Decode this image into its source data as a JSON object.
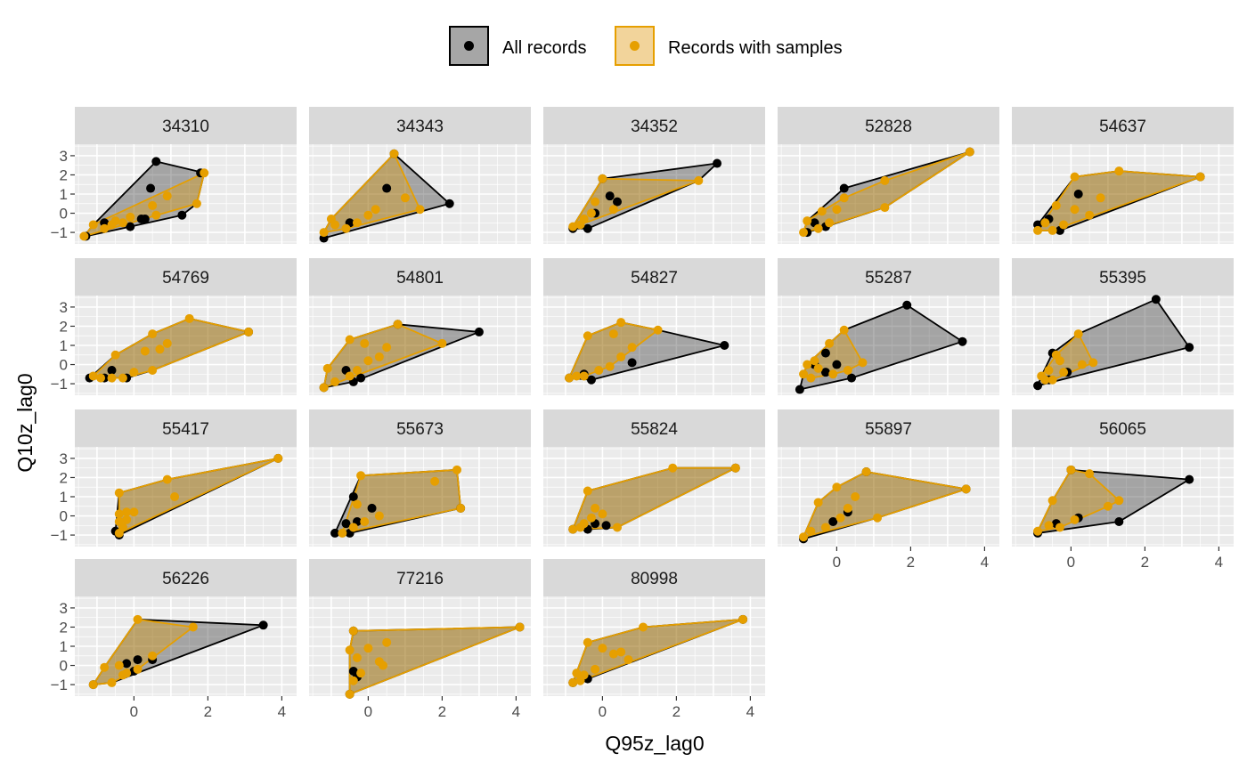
{
  "chart_data": {
    "type": "scatter",
    "xlabel": "Q95z_lag0",
    "ylabel": "Q10z_lag0",
    "xlim": [
      -1.6,
      4.4
    ],
    "ylim": [
      -1.6,
      3.6
    ],
    "x_ticks": [
      0,
      2,
      4
    ],
    "y_ticks": [
      3,
      2,
      1,
      0,
      -1
    ],
    "grid": true,
    "hull_fill": true,
    "legend_position": "top",
    "series": [
      {
        "name": "All records",
        "color": "#000000",
        "fill": "#a6a6a6",
        "legend_key": "all_records"
      },
      {
        "name": "Records with samples",
        "color": "#E69F00",
        "fill": "#f2d49b",
        "legend_key": "with_samples"
      }
    ],
    "panels": [
      {
        "label": "34310",
        "all": [
          [
            -1.3,
            -1.2
          ],
          [
            0.6,
            2.7
          ],
          [
            1.8,
            2.1
          ],
          [
            1.3,
            -0.1
          ],
          [
            -0.1,
            -0.7
          ],
          [
            0.45,
            1.3
          ],
          [
            0.2,
            -0.3
          ],
          [
            0.3,
            -0.3
          ],
          [
            -0.8,
            -0.5
          ]
        ],
        "samples": [
          [
            -1.35,
            -1.2
          ],
          [
            -1.1,
            -0.6
          ],
          [
            -0.8,
            -0.8
          ],
          [
            -0.5,
            -0.4
          ],
          [
            -0.3,
            -0.5
          ],
          [
            -0.1,
            -0.2
          ],
          [
            0.5,
            0.4
          ],
          [
            0.6,
            -0.1
          ],
          [
            0.9,
            0.9
          ],
          [
            1.7,
            0.5
          ],
          [
            1.9,
            2.1
          ],
          [
            -0.6,
            -0.6
          ]
        ]
      },
      {
        "label": "34343",
        "all": [
          [
            -1.2,
            -1.3
          ],
          [
            0.7,
            3.1
          ],
          [
            2.2,
            0.5
          ],
          [
            0.5,
            1.3
          ],
          [
            -0.5,
            -0.5
          ]
        ],
        "samples": [
          [
            -1.2,
            -1.0
          ],
          [
            -1.0,
            -0.3
          ],
          [
            0.7,
            3.1
          ],
          [
            1.4,
            0.2
          ],
          [
            1.0,
            0.8
          ],
          [
            0.2,
            0.2
          ],
          [
            -0.3,
            -0.5
          ],
          [
            0.0,
            -0.1
          ],
          [
            -0.6,
            -0.8
          ],
          [
            -0.9,
            -0.6
          ]
        ]
      },
      {
        "label": "34352",
        "all": [
          [
            -0.8,
            -0.8
          ],
          [
            -0.4,
            -0.8
          ],
          [
            3.1,
            2.6
          ],
          [
            0.0,
            1.8
          ],
          [
            0.2,
            0.9
          ],
          [
            0.4,
            0.6
          ],
          [
            -0.2,
            0.0
          ]
        ],
        "samples": [
          [
            -0.8,
            -0.7
          ],
          [
            -0.6,
            -0.6
          ],
          [
            0.0,
            1.8
          ],
          [
            2.6,
            1.7
          ],
          [
            0.3,
            0.2
          ],
          [
            -0.3,
            0.0
          ],
          [
            -0.2,
            0.6
          ],
          [
            -0.5,
            -0.3
          ]
        ]
      },
      {
        "label": "52828",
        "all": [
          [
            -0.8,
            -1.0
          ],
          [
            0.2,
            1.3
          ],
          [
            3.6,
            3.2
          ],
          [
            -0.6,
            -0.5
          ],
          [
            -0.3,
            -0.7
          ]
        ],
        "samples": [
          [
            -0.9,
            -1.0
          ],
          [
            -0.8,
            -0.4
          ],
          [
            -0.5,
            -0.8
          ],
          [
            -0.2,
            -0.5
          ],
          [
            0.0,
            0.2
          ],
          [
            0.2,
            0.8
          ],
          [
            1.3,
            1.7
          ],
          [
            1.3,
            0.3
          ],
          [
            3.6,
            3.2
          ],
          [
            -0.4,
            0.1
          ]
        ]
      },
      {
        "label": "54637",
        "all": [
          [
            -0.9,
            -0.6
          ],
          [
            -0.3,
            -0.9
          ],
          [
            0.2,
            1.0
          ],
          [
            3.5,
            1.9
          ],
          [
            -0.6,
            -0.3
          ]
        ],
        "samples": [
          [
            -0.9,
            -0.9
          ],
          [
            -0.7,
            -0.5
          ],
          [
            -0.4,
            0.4
          ],
          [
            0.1,
            1.9
          ],
          [
            1.3,
            2.2
          ],
          [
            3.5,
            1.9
          ],
          [
            0.8,
            0.8
          ],
          [
            0.5,
            -0.1
          ],
          [
            0.1,
            0.2
          ],
          [
            -0.2,
            -0.6
          ],
          [
            -0.5,
            -0.9
          ]
        ]
      },
      {
        "label": "54769",
        "all": [
          [
            -1.2,
            -0.7
          ],
          [
            -0.6,
            -0.3
          ],
          [
            -0.2,
            -0.7
          ],
          [
            3.1,
            1.7
          ],
          [
            -0.8,
            -0.7
          ]
        ],
        "samples": [
          [
            -1.1,
            -0.6
          ],
          [
            -0.9,
            -0.7
          ],
          [
            -0.5,
            0.5
          ],
          [
            0.5,
            1.6
          ],
          [
            1.5,
            2.4
          ],
          [
            3.1,
            1.7
          ],
          [
            0.9,
            1.1
          ],
          [
            0.7,
            0.8
          ],
          [
            0.3,
            0.7
          ],
          [
            0.5,
            -0.3
          ],
          [
            0.0,
            -0.4
          ],
          [
            -0.3,
            -0.7
          ],
          [
            -0.6,
            -0.7
          ]
        ]
      },
      {
        "label": "54801",
        "all": [
          [
            -1.2,
            -1.2
          ],
          [
            3.0,
            1.7
          ],
          [
            0.8,
            2.1
          ],
          [
            -0.6,
            -0.3
          ],
          [
            -0.4,
            -0.9
          ],
          [
            -0.2,
            -0.7
          ]
        ],
        "samples": [
          [
            -1.2,
            -1.2
          ],
          [
            -1.1,
            -0.2
          ],
          [
            -0.5,
            1.3
          ],
          [
            0.8,
            2.1
          ],
          [
            2.0,
            1.1
          ],
          [
            0.3,
            0.4
          ],
          [
            0.0,
            0.2
          ],
          [
            -0.3,
            -0.3
          ],
          [
            -0.5,
            -0.6
          ],
          [
            -0.9,
            -0.9
          ],
          [
            -0.1,
            1.1
          ],
          [
            0.5,
            0.9
          ]
        ]
      },
      {
        "label": "54827",
        "all": [
          [
            -0.9,
            -0.7
          ],
          [
            -0.3,
            -0.8
          ],
          [
            3.3,
            1.0
          ],
          [
            0.8,
            0.1
          ],
          [
            -0.5,
            -0.5
          ]
        ],
        "samples": [
          [
            -0.9,
            -0.7
          ],
          [
            -0.7,
            -0.6
          ],
          [
            -0.4,
            1.5
          ],
          [
            0.5,
            2.2
          ],
          [
            1.5,
            1.8
          ],
          [
            0.3,
            1.6
          ],
          [
            0.8,
            0.9
          ],
          [
            0.5,
            0.4
          ],
          [
            0.2,
            -0.1
          ],
          [
            -0.1,
            -0.3
          ],
          [
            -0.5,
            -0.6
          ]
        ]
      },
      {
        "label": "55287",
        "all": [
          [
            -1.0,
            -1.3
          ],
          [
            1.9,
            3.1
          ],
          [
            3.4,
            1.2
          ],
          [
            0.4,
            -0.7
          ],
          [
            -0.3,
            0.6
          ],
          [
            0.0,
            0.0
          ],
          [
            -0.6,
            0.0
          ],
          [
            -0.3,
            -0.4
          ]
        ],
        "samples": [
          [
            -0.9,
            -0.5
          ],
          [
            -0.8,
            0.0
          ],
          [
            -0.2,
            1.1
          ],
          [
            0.2,
            1.8
          ],
          [
            0.7,
            0.1
          ],
          [
            0.3,
            -0.3
          ],
          [
            -0.1,
            -0.5
          ],
          [
            -0.5,
            -0.2
          ],
          [
            -0.7,
            -0.7
          ],
          [
            -0.6,
            0.2
          ]
        ]
      },
      {
        "label": "55395",
        "all": [
          [
            -0.9,
            -1.1
          ],
          [
            -0.5,
            0.6
          ],
          [
            2.3,
            3.4
          ],
          [
            3.2,
            0.9
          ],
          [
            -0.1,
            -0.4
          ],
          [
            -0.6,
            -0.8
          ]
        ],
        "samples": [
          [
            -0.8,
            -0.6
          ],
          [
            -0.6,
            -0.3
          ],
          [
            -0.3,
            0.2
          ],
          [
            0.2,
            1.6
          ],
          [
            0.6,
            0.1
          ],
          [
            0.3,
            0.0
          ],
          [
            -0.2,
            -0.4
          ],
          [
            -0.5,
            -0.8
          ],
          [
            -0.7,
            -0.8
          ],
          [
            -0.4,
            0.5
          ]
        ]
      },
      {
        "label": "55417",
        "all": [
          [
            -0.4,
            -1.0
          ],
          [
            3.9,
            3.0
          ],
          [
            -0.5,
            -0.8
          ]
        ],
        "samples": [
          [
            -0.4,
            -0.9
          ],
          [
            -0.4,
            1.2
          ],
          [
            0.9,
            1.9
          ],
          [
            3.9,
            3.0
          ],
          [
            1.1,
            1.0
          ],
          [
            0.0,
            0.2
          ],
          [
            -0.2,
            -0.2
          ],
          [
            -0.4,
            0.1
          ],
          [
            -0.3,
            -0.6
          ],
          [
            -0.4,
            -0.3
          ],
          [
            -0.2,
            0.2
          ]
        ]
      },
      {
        "label": "55673",
        "all": [
          [
            -0.9,
            -0.9
          ],
          [
            -0.4,
            1.0
          ],
          [
            2.5,
            0.4
          ],
          [
            0.1,
            0.4
          ],
          [
            -0.3,
            -0.3
          ],
          [
            -0.5,
            -0.9
          ],
          [
            -0.6,
            -0.4
          ]
        ],
        "samples": [
          [
            -0.7,
            -0.9
          ],
          [
            -0.2,
            2.1
          ],
          [
            2.4,
            2.4
          ],
          [
            2.5,
            0.4
          ],
          [
            1.8,
            1.8
          ],
          [
            0.3,
            0.0
          ],
          [
            -0.1,
            -0.3
          ],
          [
            -0.4,
            -0.6
          ],
          [
            -0.3,
            0.6
          ]
        ]
      },
      {
        "label": "55824",
        "all": [
          [
            -0.8,
            -0.7
          ],
          [
            3.6,
            2.5
          ],
          [
            0.1,
            -0.5
          ],
          [
            -0.4,
            -0.7
          ],
          [
            -0.2,
            -0.4
          ]
        ],
        "samples": [
          [
            -0.8,
            -0.7
          ],
          [
            -0.4,
            1.3
          ],
          [
            1.9,
            2.5
          ],
          [
            3.6,
            2.5
          ],
          [
            0.4,
            -0.6
          ],
          [
            0.0,
            0.1
          ],
          [
            -0.2,
            0.4
          ],
          [
            -0.5,
            -0.4
          ],
          [
            -0.3,
            -0.1
          ],
          [
            -0.6,
            -0.6
          ]
        ]
      },
      {
        "label": "55897",
        "all": [
          [
            -0.9,
            -1.2
          ],
          [
            -0.1,
            -0.3
          ],
          [
            3.5,
            1.4
          ],
          [
            0.8,
            2.3
          ],
          [
            0.3,
            0.2
          ]
        ],
        "samples": [
          [
            -0.9,
            -1.1
          ],
          [
            -0.5,
            0.7
          ],
          [
            0.0,
            1.5
          ],
          [
            0.8,
            2.3
          ],
          [
            3.5,
            1.4
          ],
          [
            1.1,
            -0.1
          ],
          [
            0.3,
            0.4
          ],
          [
            0.1,
            -0.1
          ],
          [
            -0.3,
            -0.6
          ],
          [
            -0.7,
            -0.8
          ],
          [
            0.5,
            1.0
          ]
        ]
      },
      {
        "label": "56065",
        "all": [
          [
            -0.9,
            -0.9
          ],
          [
            0.0,
            2.4
          ],
          [
            3.2,
            1.9
          ],
          [
            1.3,
            -0.3
          ],
          [
            0.2,
            -0.1
          ],
          [
            -0.4,
            -0.4
          ]
        ],
        "samples": [
          [
            -0.9,
            -0.8
          ],
          [
            -0.5,
            0.8
          ],
          [
            0.0,
            2.4
          ],
          [
            0.5,
            2.2
          ],
          [
            1.3,
            0.8
          ],
          [
            1.0,
            0.5
          ],
          [
            0.1,
            -0.2
          ],
          [
            -0.3,
            -0.6
          ],
          [
            -0.6,
            -0.5
          ]
        ]
      },
      {
        "label": "56226",
        "all": [
          [
            -1.1,
            -1.0
          ],
          [
            3.5,
            2.1
          ],
          [
            0.5,
            0.3
          ],
          [
            0.1,
            0.3
          ],
          [
            -0.2,
            0.1
          ],
          [
            0.0,
            -0.3
          ]
        ],
        "samples": [
          [
            -1.1,
            -1.0
          ],
          [
            -0.8,
            -0.1
          ],
          [
            0.1,
            2.4
          ],
          [
            1.6,
            2.0
          ],
          [
            0.5,
            0.5
          ],
          [
            0.1,
            -0.2
          ],
          [
            -0.3,
            -0.5
          ],
          [
            -0.6,
            -0.9
          ],
          [
            -0.4,
            0.0
          ],
          [
            -0.2,
            -0.4
          ]
        ]
      },
      {
        "label": "77216",
        "all": [
          [
            -0.5,
            -1.5
          ],
          [
            -0.4,
            1.8
          ],
          [
            4.1,
            2.0
          ],
          [
            -0.4,
            -0.3
          ],
          [
            -0.3,
            -0.6
          ]
        ],
        "samples": [
          [
            -0.5,
            -1.5
          ],
          [
            -0.4,
            1.8
          ],
          [
            4.1,
            2.0
          ],
          [
            0.5,
            1.2
          ],
          [
            0.3,
            0.2
          ],
          [
            -0.2,
            -0.4
          ],
          [
            -0.4,
            -0.8
          ],
          [
            -0.3,
            0.4
          ],
          [
            0.0,
            0.9
          ],
          [
            -0.5,
            0.8
          ],
          [
            0.4,
            0.0
          ]
        ]
      },
      {
        "label": "80998",
        "all": [
          [
            -0.8,
            -0.9
          ],
          [
            3.8,
            2.4
          ],
          [
            -0.4,
            -0.7
          ]
        ],
        "samples": [
          [
            -0.8,
            -0.9
          ],
          [
            -0.4,
            1.2
          ],
          [
            1.1,
            2.0
          ],
          [
            3.8,
            2.4
          ],
          [
            0.7,
            0.3
          ],
          [
            0.3,
            0.6
          ],
          [
            0.0,
            0.9
          ],
          [
            -0.2,
            -0.2
          ],
          [
            -0.5,
            -0.5
          ],
          [
            -0.7,
            -0.4
          ],
          [
            0.5,
            0.7
          ],
          [
            -0.6,
            -0.8
          ]
        ]
      }
    ]
  }
}
